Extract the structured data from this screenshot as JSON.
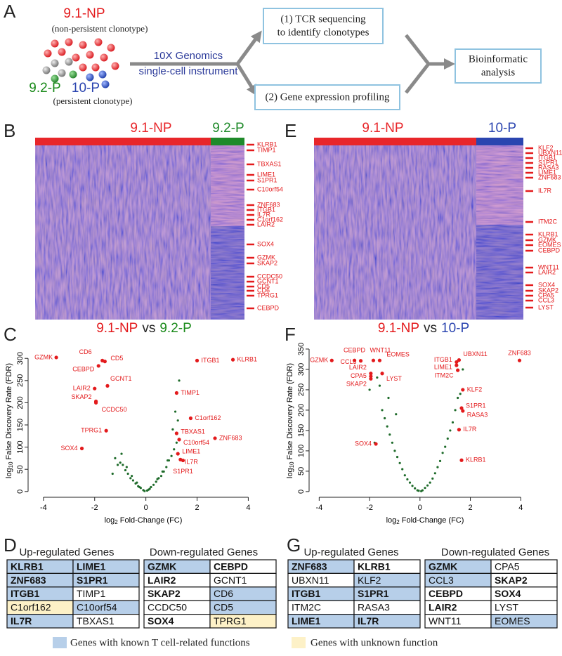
{
  "panel_labels": [
    "A",
    "B",
    "C",
    "D",
    "E",
    "F",
    "G"
  ],
  "overview": {
    "np_label": "9.1-NP",
    "np_desc": "(non-persistent clonotype)",
    "p1_label": "9.2-P",
    "p2_label": "10-P",
    "p_desc": "(persistent clonotype)",
    "instrument": [
      "10X Genomics",
      "single-cell instrument"
    ],
    "step1": [
      "(1) TCR sequencing",
      "to identify clonotypes"
    ],
    "step2": "(2) Gene expression profiling",
    "analysis": [
      "Bioinformatic",
      "analysis"
    ]
  },
  "heatmaps": [
    {
      "groups": [
        {
          "name": "9.1-NP",
          "color": "#e8262a"
        },
        {
          "name": "9.2-P",
          "color": "#1f8a2a"
        }
      ],
      "genes": [
        "KLRB1",
        "TIMP1",
        "TBXAS1",
        "LIME1",
        "S1PR1",
        "C10orf54",
        "ZNF683",
        "ITGB1",
        "IL7R",
        "C1orf162",
        "LAIR2",
        "SOX4",
        "GZMK",
        "SKAP2",
        "CCDC50",
        "GCNT1",
        "CD5",
        "CD6",
        "TPRG1",
        "CEBPD"
      ]
    },
    {
      "groups": [
        {
          "name": "9.1-NP",
          "color": "#e8262a"
        },
        {
          "name": "10-P",
          "color": "#2b45b0"
        }
      ],
      "genes": [
        "KLF2",
        "UBXN11",
        "ITGB1",
        "S1PR1",
        "RASA3",
        "LIME1",
        "ZNF683",
        "IL7R",
        "ITM2C",
        "KLRB1",
        "GZMK",
        "EOMES",
        "CEBPD",
        "WNT11",
        "LAIR2",
        "SOX4",
        "SKAP2",
        "CPA5",
        "CCL3",
        "LYST"
      ]
    }
  ],
  "chart_data": [
    {
      "type": "scatter",
      "title": [
        "9.1-NP",
        "vs",
        "9.2-P"
      ],
      "title_colors": [
        "#e31a1c",
        "#222222",
        "#1a8a1a"
      ],
      "xlabel": [
        "log",
        "2",
        "Fold-Change (FC)"
      ],
      "ylabel": [
        "log",
        "10",
        "False Discovery Rate (FDR)"
      ],
      "xlim": [
        -4.6,
        4.4
      ],
      "ylim": [
        -13,
        332
      ],
      "xticks": [
        -4,
        -2,
        0,
        2,
        4
      ],
      "yticks": [
        0,
        50,
        100,
        150,
        200,
        250,
        300
      ],
      "points": {
        "color": "#1e6b2a",
        "x": [
          -0.1,
          0.1,
          -0.2,
          0.2,
          -0.3,
          0.3,
          -0.4,
          0.4,
          -0.5,
          0.5,
          -0.6,
          0.6,
          -0.7,
          0.7,
          -0.8,
          0.8,
          -0.9,
          0.9,
          -1.0,
          1.0,
          -1.1,
          1.1,
          -1.2,
          1.2,
          -0.35,
          0.45,
          -0.55,
          0.65,
          -0.75,
          0.85,
          -0.95,
          1.05,
          1.15,
          -1.3,
          1.25,
          1.3,
          -0.25,
          0.15,
          0.05,
          -0.05
        ],
        "y": [
          3,
          4,
          8,
          10,
          12,
          15,
          18,
          22,
          25,
          30,
          30,
          35,
          40,
          45,
          48,
          55,
          60,
          70,
          65,
          80,
          60,
          95,
          75,
          110,
          20,
          28,
          35,
          45,
          55,
          70,
          85,
          140,
          180,
          40,
          160,
          250,
          10,
          6,
          2,
          1
        ]
      },
      "highlights": {
        "color": "#e31a1c",
        "labels": [
          "GZMK",
          "CD6",
          "CD5",
          "CEBPD",
          "GCNT1",
          "LAIR2",
          "SKAP2",
          "CCDC50",
          "TPRG1",
          "SOX4",
          "ITGB1",
          "KLRB1",
          "TIMP1",
          "C1orf162",
          "TBXAS1",
          "C10orf54",
          "ZNF683",
          "LIME1",
          "IL7R",
          "S1PR1"
        ],
        "x": [
          -3.5,
          -1.7,
          -1.6,
          -1.85,
          -1.5,
          -2.0,
          -1.95,
          -1.95,
          -1.55,
          -2.5,
          2.0,
          3.4,
          1.2,
          1.75,
          1.2,
          1.3,
          2.7,
          1.25,
          1.35,
          1.45
        ],
        "y": [
          302,
          295,
          293,
          283,
          238,
          232,
          203,
          200,
          137,
          97,
          295,
          297,
          222,
          165,
          131,
          117,
          120,
          85,
          72,
          70
        ]
      }
    },
    {
      "type": "scatter",
      "title": [
        "9.1-NP",
        "vs",
        "10-P"
      ],
      "title_colors": [
        "#e31a1c",
        "#222222",
        "#2b45b0"
      ],
      "xlabel": [
        "log",
        "2",
        "Fold-Change (FC)"
      ],
      "ylabel": [
        "log",
        "10",
        "False Discovery Rate (FDR)"
      ],
      "xlim": [
        -4.4,
        4.8
      ],
      "ylim": [
        -14,
        362
      ],
      "xticks": [
        -4,
        -2,
        0,
        2,
        4
      ],
      "yticks": [
        0,
        50,
        100,
        150,
        200,
        250,
        300,
        350
      ],
      "points": {
        "color": "#1e6b2a",
        "x": [
          -0.1,
          0.1,
          -0.2,
          0.2,
          -0.3,
          0.3,
          -0.4,
          0.4,
          -0.5,
          0.5,
          -0.6,
          0.6,
          -0.7,
          0.7,
          -0.8,
          0.8,
          -0.9,
          0.9,
          -1.0,
          1.0,
          -1.1,
          1.1,
          -1.2,
          1.2,
          -1.3,
          1.3,
          -1.4,
          1.4,
          -1.5,
          1.5,
          -1.6,
          -1.7,
          1.6,
          1.7,
          -1.8,
          -2.0,
          0.05,
          -0.05,
          -1.25,
          -0.95
        ],
        "y": [
          3,
          3,
          8,
          9,
          14,
          15,
          22,
          22,
          30,
          32,
          40,
          45,
          55,
          60,
          70,
          75,
          85,
          95,
          100,
          110,
          120,
          130,
          140,
          150,
          160,
          170,
          180,
          200,
          200,
          230,
          260,
          280,
          240,
          300,
          120,
          250,
          1,
          2,
          230,
          190
        ]
      },
      "highlights": {
        "color": "#e31a1c",
        "labels": [
          "GZMK",
          "CEBPD",
          "CCL3",
          "WNT11",
          "EOMES",
          "LAIR2",
          "CPA5",
          "SKAP2",
          "LYST",
          "SOX4",
          "ITGB1",
          "UBXN11",
          "LIME1",
          "ITM2C",
          "KLF2",
          "ZNF683",
          "S1PR1",
          "RASA3",
          "IL7R",
          "KLRB1"
        ],
        "x": [
          -3.5,
          -2.6,
          -2.35,
          -1.85,
          -1.6,
          -1.95,
          -1.95,
          -1.95,
          -1.5,
          -1.75,
          1.45,
          1.55,
          1.45,
          1.5,
          1.7,
          3.95,
          1.65,
          1.7,
          1.55,
          1.65
        ],
        "y": [
          322,
          322,
          321,
          322,
          322,
          290,
          283,
          277,
          290,
          117,
          318,
          323,
          310,
          298,
          250,
          322,
          205,
          198,
          152,
          77
        ]
      }
    }
  ],
  "tables": [
    {
      "headers": [
        "Up-regulated Genes",
        "Down-regulated Genes"
      ],
      "up": [
        [
          {
            "text": "KLRB1",
            "bold": true,
            "bg": "#b7cfe9"
          },
          {
            "text": "LIME1",
            "bold": true,
            "bg": "#b7cfe9"
          }
        ],
        [
          {
            "text": "ZNF683",
            "bold": true,
            "bg": "#b7cfe9"
          },
          {
            "text": "S1PR1",
            "bold": true,
            "bg": "#b7cfe9"
          }
        ],
        [
          {
            "text": "ITGB1",
            "bold": true,
            "bg": "#b7cfe9"
          },
          {
            "text": "TIMP1",
            "bold": false,
            "bg": "#ffffff"
          }
        ],
        [
          {
            "text": "C1orf162",
            "bold": false,
            "bg": "#fdf1c7"
          },
          {
            "text": "C10orf54",
            "bold": false,
            "bg": "#b7cfe9"
          }
        ],
        [
          {
            "text": "IL7R",
            "bold": true,
            "bg": "#b7cfe9"
          },
          {
            "text": "TBXAS1",
            "bold": false,
            "bg": "#ffffff"
          }
        ]
      ],
      "down": [
        [
          {
            "text": "GZMK",
            "bold": true,
            "bg": "#b7cfe9"
          },
          {
            "text": "CEBPD",
            "bold": true,
            "bg": "#ffffff"
          }
        ],
        [
          {
            "text": "LAIR2",
            "bold": true,
            "bg": "#ffffff"
          },
          {
            "text": "GCNT1",
            "bold": false,
            "bg": "#ffffff"
          }
        ],
        [
          {
            "text": "SKAP2",
            "bold": true,
            "bg": "#ffffff"
          },
          {
            "text": "CD6",
            "bold": false,
            "bg": "#b7cfe9"
          }
        ],
        [
          {
            "text": "CCDC50",
            "bold": false,
            "bg": "#ffffff"
          },
          {
            "text": "CD5",
            "bold": false,
            "bg": "#b7cfe9"
          }
        ],
        [
          {
            "text": "SOX4",
            "bold": true,
            "bg": "#ffffff"
          },
          {
            "text": "TPRG1",
            "bold": false,
            "bg": "#fdf1c7"
          }
        ]
      ],
      "legend": {
        "text": "Genes with known T cell-related functions",
        "color": "#b7cfe9"
      }
    },
    {
      "headers": [
        "Up-regulated Genes",
        "Down-regulated Genes"
      ],
      "up": [
        [
          {
            "text": "ZNF683",
            "bold": true,
            "bg": "#b7cfe9"
          },
          {
            "text": "KLRB1",
            "bold": true,
            "bg": "#ffffff"
          }
        ],
        [
          {
            "text": "UBXN11",
            "bold": false,
            "bg": "#ffffff"
          },
          {
            "text": "KLF2",
            "bold": false,
            "bg": "#b7cfe9"
          }
        ],
        [
          {
            "text": "ITGB1",
            "bold": true,
            "bg": "#b7cfe9"
          },
          {
            "text": "S1PR1",
            "bold": true,
            "bg": "#b7cfe9"
          }
        ],
        [
          {
            "text": "ITM2C",
            "bold": false,
            "bg": "#ffffff"
          },
          {
            "text": "RASA3",
            "bold": false,
            "bg": "#ffffff"
          }
        ],
        [
          {
            "text": "LIME1",
            "bold": true,
            "bg": "#b7cfe9"
          },
          {
            "text": "IL7R",
            "bold": true,
            "bg": "#b7cfe9"
          }
        ]
      ],
      "down": [
        [
          {
            "text": "GZMK",
            "bold": true,
            "bg": "#b7cfe9"
          },
          {
            "text": "CPA5",
            "bold": false,
            "bg": "#ffffff"
          }
        ],
        [
          {
            "text": "CCL3",
            "bold": false,
            "bg": "#b7cfe9"
          },
          {
            "text": "SKAP2",
            "bold": true,
            "bg": "#ffffff"
          }
        ],
        [
          {
            "text": "CEBPD",
            "bold": true,
            "bg": "#ffffff"
          },
          {
            "text": "SOX4",
            "bold": true,
            "bg": "#ffffff"
          }
        ],
        [
          {
            "text": "LAIR2",
            "bold": true,
            "bg": "#ffffff"
          },
          {
            "text": "LYST",
            "bold": false,
            "bg": "#ffffff"
          }
        ],
        [
          {
            "text": "WNT11",
            "bold": false,
            "bg": "#ffffff"
          },
          {
            "text": "EOMES",
            "bold": false,
            "bg": "#b7cfe9"
          }
        ]
      ],
      "legend": {
        "text": "Genes with unknown function",
        "color": "#fdf1c7"
      }
    }
  ]
}
